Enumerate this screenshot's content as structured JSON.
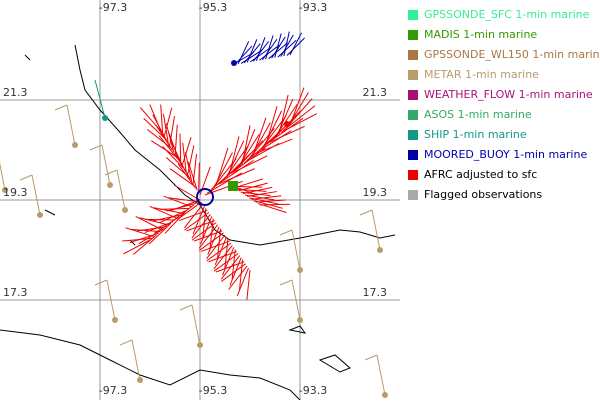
{
  "map": {
    "grid_labels": {
      "top": [
        "-97.3",
        "-95.3",
        "-93.3"
      ],
      "bottom": [
        "-97.3",
        "-95.3",
        "-93.3"
      ],
      "left": [
        "21.3",
        "19.3",
        "17.3"
      ],
      "right": [
        "21.3",
        "19.3",
        "17.3"
      ]
    }
  },
  "legend": {
    "items": [
      {
        "name": "GPSSONDE_SFC 1-min marine",
        "color": "#33ee99",
        "text_color": "#33ee99"
      },
      {
        "name": "MADIS 1-min marine",
        "color": "#339900",
        "text_color": "#339900"
      },
      {
        "name": "GPSSONDE_WL150 1-min marine",
        "color": "#aa7744",
        "text_color": "#aa7744"
      },
      {
        "name": "METAR 1-min marine",
        "color": "#b89c6c",
        "text_color": "#b89c6c"
      },
      {
        "name": "WEATHER_FLOW 1-min marine",
        "color": "#aa1177",
        "text_color": "#aa1177"
      },
      {
        "name": "ASOS 1-min marine",
        "color": "#33aa66",
        "text_color": "#33aa66"
      },
      {
        "name": "SHIP 1-min marine",
        "color": "#119988",
        "text_color": "#119988"
      },
      {
        "name": "MOORED_BUOY 1-min marine",
        "color": "#0000aa",
        "text_color": "#0000aa"
      },
      {
        "name": "AFRC adjusted to sfc",
        "color": "#ee0000",
        "text_color": "#000000"
      },
      {
        "name": "Flagged observations",
        "color": "#aaaaaa",
        "text_color": "#000000"
      }
    ]
  }
}
